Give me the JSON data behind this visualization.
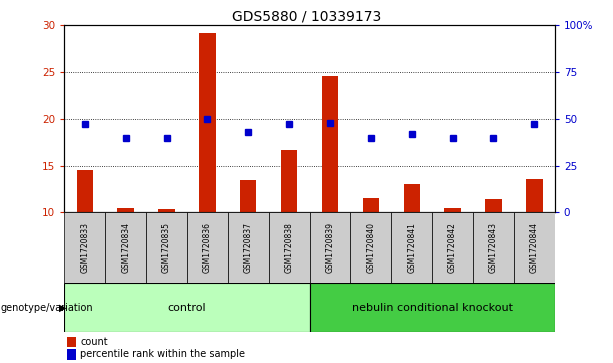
{
  "title": "GDS5880 / 10339173",
  "samples": [
    "GSM1720833",
    "GSM1720834",
    "GSM1720835",
    "GSM1720836",
    "GSM1720837",
    "GSM1720838",
    "GSM1720839",
    "GSM1720840",
    "GSM1720841",
    "GSM1720842",
    "GSM1720843",
    "GSM1720844"
  ],
  "counts": [
    14.5,
    10.5,
    10.4,
    29.2,
    13.5,
    16.7,
    24.6,
    11.5,
    13.0,
    10.5,
    11.4,
    13.6
  ],
  "percentiles": [
    47,
    40,
    40,
    50,
    43,
    47,
    48,
    40,
    42,
    40,
    40,
    47
  ],
  "bar_color": "#cc2200",
  "dot_color": "#0000cc",
  "ylim_left": [
    10,
    30
  ],
  "ylim_right": [
    0,
    100
  ],
  "yticks_left": [
    10,
    15,
    20,
    25,
    30
  ],
  "yticks_right": [
    0,
    25,
    50,
    75,
    100
  ],
  "ytick_labels_right": [
    "0",
    "25",
    "50",
    "75",
    "100%"
  ],
  "control_label": "control",
  "knockout_label": "nebulin conditional knockout",
  "genotype_label": "genotype/variation",
  "legend_count": "count",
  "legend_pct": "percentile rank within the sample",
  "control_color": "#bbffbb",
  "knockout_color": "#44cc44",
  "sample_box_color": "#cccccc",
  "n_control": 6,
  "n_knockout": 6,
  "bar_width": 0.4
}
